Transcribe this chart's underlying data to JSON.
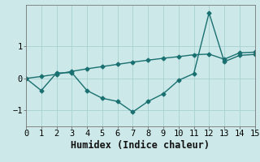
{
  "xlabel": "Humidex (Indice chaleur)",
  "bg_color": "#cce8e8",
  "grid_color": "#aad4d4",
  "line_color": "#1a7070",
  "line1_x": [
    0,
    1,
    2,
    3,
    4,
    5,
    6,
    7,
    8,
    9,
    10,
    11,
    12,
    13,
    14,
    15
  ],
  "line1_y": [
    0.0,
    -0.38,
    0.17,
    0.18,
    -0.38,
    -0.62,
    -0.72,
    -1.05,
    -0.72,
    -0.48,
    -0.06,
    0.15,
    2.05,
    0.52,
    0.72,
    0.75
  ],
  "line2_x": [
    0,
    1,
    2,
    3,
    4,
    5,
    6,
    7,
    8,
    9,
    10,
    11,
    12,
    13,
    14,
    15
  ],
  "line2_y": [
    0.0,
    0.06,
    0.13,
    0.22,
    0.3,
    0.37,
    0.44,
    0.51,
    0.57,
    0.63,
    0.68,
    0.74,
    0.76,
    0.6,
    0.8,
    0.82
  ],
  "xlim": [
    0,
    15
  ],
  "ylim": [
    -1.5,
    2.3
  ],
  "yticks": [
    -1,
    0,
    1
  ],
  "xticks": [
    0,
    1,
    2,
    3,
    4,
    5,
    6,
    7,
    8,
    9,
    10,
    11,
    12,
    13,
    14,
    15
  ],
  "marker": "D",
  "marker_size": 2.5,
  "linewidth": 1.0,
  "tick_fontsize": 7.5,
  "xlabel_fontsize": 8.5
}
